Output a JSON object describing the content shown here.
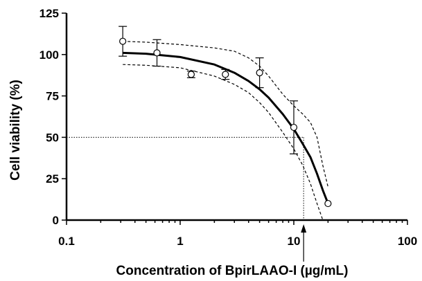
{
  "chart_data": {
    "type": "scatter",
    "xlabel": "Concentration of BpirLAAO-I (µg/mL)",
    "ylabel": "Cell viability (%)",
    "x_scale": "log",
    "xlim": [
      0.1,
      100
    ],
    "ylim": [
      0,
      125
    ],
    "x_ticks": [
      "0.1",
      "1",
      "10",
      "100"
    ],
    "y_ticks": [
      "0",
      "25",
      "50",
      "75",
      "100",
      "125"
    ],
    "grid": false,
    "series": [
      {
        "points": [
          {
            "x": 0.3125,
            "y": 108,
            "err": 9
          },
          {
            "x": 0.625,
            "y": 101,
            "err": 8
          },
          {
            "x": 1.25,
            "y": 88,
            "err": 2
          },
          {
            "x": 2.5,
            "y": 88,
            "err": 3
          },
          {
            "x": 5,
            "y": 89,
            "err": 9
          },
          {
            "x": 10,
            "y": 56,
            "err": 16
          },
          {
            "x": 20,
            "y": 10,
            "err": 0
          }
        ]
      }
    ],
    "fit_curve": {
      "x": [
        0.3125,
        0.5,
        1,
        2,
        3,
        4,
        5,
        6,
        8,
        10,
        12,
        14,
        16,
        18,
        20
      ],
      "y": [
        101,
        100.5,
        98.5,
        94,
        89,
        84,
        79,
        74,
        64,
        55,
        46,
        38,
        28,
        18,
        10
      ]
    },
    "ci_upper": {
      "x": [
        0.3125,
        0.5,
        1,
        2,
        3,
        4,
        5,
        6,
        8,
        10,
        12,
        14,
        16,
        18,
        20
      ],
      "y": [
        108,
        107.5,
        106,
        104,
        102,
        98,
        93,
        87,
        76,
        69,
        64,
        59,
        50,
        33,
        20
      ]
    },
    "ci_lower": {
      "x": [
        0.3125,
        0.5,
        1,
        2,
        3,
        4,
        5,
        6,
        8,
        10,
        12,
        14,
        16,
        18
      ],
      "y": [
        94,
        93.5,
        92,
        87,
        82,
        77,
        71,
        65,
        53,
        43,
        33,
        22,
        10,
        0
      ]
    },
    "ic50": {
      "x": 12.2,
      "y": 50
    }
  }
}
